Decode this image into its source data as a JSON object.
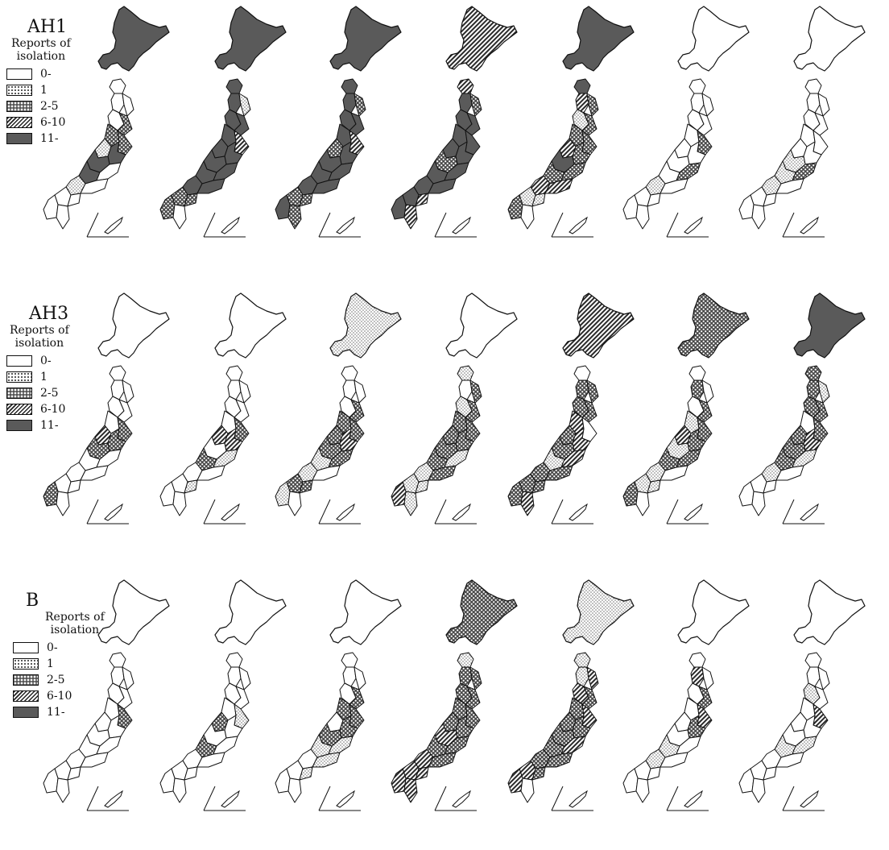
{
  "rows": [
    {
      "title": "AH1",
      "legend_subtitle_line1": "Reports of",
      "legend_subtitle_line2": "isolation",
      "legend_items": [
        "0-",
        "1",
        "2-5",
        "6-10",
        "11-"
      ],
      "maps": [
        {
          "hokkaido": 4,
          "regions": [
            0,
            0,
            0,
            0,
            2,
            2,
            2,
            1,
            4,
            4,
            4,
            0,
            1,
            0,
            0,
            0,
            0,
            0
          ]
        },
        {
          "hokkaido": 4,
          "regions": [
            4,
            4,
            1,
            4,
            4,
            4,
            3,
            4,
            4,
            4,
            4,
            4,
            4,
            4,
            2,
            2,
            2,
            0
          ]
        },
        {
          "hokkaido": 4,
          "regions": [
            4,
            4,
            2,
            4,
            4,
            4,
            3,
            2,
            4,
            4,
            4,
            4,
            4,
            4,
            2,
            2,
            4,
            2
          ]
        },
        {
          "hokkaido": 3,
          "regions": [
            3,
            4,
            2,
            4,
            4,
            4,
            4,
            4,
            4,
            2,
            4,
            4,
            4,
            4,
            4,
            3,
            4,
            3
          ]
        },
        {
          "hokkaido": 4,
          "regions": [
            4,
            3,
            2,
            1,
            2,
            2,
            2,
            3,
            2,
            4,
            2,
            2,
            3,
            3,
            1,
            1,
            2,
            0
          ]
        },
        {
          "hokkaido": 0,
          "regions": [
            0,
            0,
            0,
            0,
            0,
            0,
            2,
            0,
            0,
            0,
            0,
            2,
            1,
            0,
            0,
            0,
            0,
            0
          ]
        },
        {
          "hokkaido": 0,
          "regions": [
            0,
            0,
            0,
            0,
            0,
            0,
            0,
            0,
            0,
            1,
            1,
            2,
            1,
            0,
            0,
            0,
            0,
            0
          ]
        }
      ]
    },
    {
      "title": "AH3",
      "legend_subtitle_line1": "Reports of",
      "legend_subtitle_line2": "isolation",
      "legend_items": [
        "0-",
        "1",
        "2-5",
        "6-10",
        "11-"
      ],
      "maps": [
        {
          "hokkaido": 0,
          "regions": [
            0,
            0,
            0,
            0,
            0,
            0,
            2,
            3,
            2,
            2,
            0,
            0,
            0,
            0,
            0,
            0,
            2,
            0
          ]
        },
        {
          "hokkaido": 0,
          "regions": [
            0,
            0,
            0,
            0,
            0,
            0,
            2,
            3,
            3,
            0,
            2,
            1,
            0,
            0,
            0,
            1,
            0,
            0
          ]
        },
        {
          "hokkaido": 1,
          "regions": [
            0,
            0,
            0,
            0,
            2,
            2,
            2,
            2,
            3,
            2,
            1,
            2,
            1,
            0,
            2,
            2,
            1,
            0
          ]
        },
        {
          "hokkaido": 0,
          "regions": [
            1,
            0,
            2,
            1,
            2,
            2,
            2,
            2,
            2,
            2,
            2,
            1,
            1,
            2,
            1,
            1,
            3,
            1
          ]
        },
        {
          "hokkaido": 3,
          "regions": [
            0,
            2,
            2,
            2,
            2,
            3,
            0,
            2,
            3,
            2,
            1,
            3,
            2,
            2,
            2,
            2,
            2,
            3
          ]
        },
        {
          "hokkaido": 2,
          "regions": [
            0,
            2,
            0,
            0,
            2,
            1,
            2,
            3,
            2,
            1,
            2,
            2,
            1,
            0,
            1,
            1,
            2,
            0
          ]
        },
        {
          "hokkaido": 4,
          "regions": [
            2,
            2,
            1,
            2,
            2,
            0,
            2,
            2,
            3,
            2,
            2,
            1,
            1,
            0,
            0,
            0,
            0,
            0
          ]
        }
      ]
    },
    {
      "title": "B",
      "legend_subtitle_line1": "Reports of",
      "legend_subtitle_line2": "isolation",
      "legend_items": [
        "0-",
        "1",
        "2-5",
        "6-10",
        "11-"
      ],
      "maps": [
        {
          "hokkaido": 0,
          "regions": [
            0,
            0,
            0,
            0,
            0,
            0,
            2,
            0,
            0,
            0,
            0,
            0,
            0,
            0,
            0,
            0,
            0,
            0
          ]
        },
        {
          "hokkaido": 0,
          "regions": [
            0,
            0,
            0,
            0,
            0,
            0,
            1,
            2,
            0,
            0,
            2,
            0,
            0,
            0,
            0,
            0,
            0,
            0
          ]
        },
        {
          "hokkaido": 0,
          "regions": [
            0,
            0,
            0,
            0,
            2,
            2,
            2,
            0,
            2,
            2,
            1,
            1,
            0,
            1,
            0,
            1,
            0,
            0
          ]
        },
        {
          "hokkaido": 2,
          "regions": [
            1,
            2,
            2,
            2,
            2,
            2,
            2,
            2,
            2,
            3,
            2,
            2,
            3,
            2,
            3,
            3,
            3,
            3
          ]
        },
        {
          "hokkaido": 1,
          "regions": [
            1,
            1,
            3,
            3,
            2,
            2,
            3,
            2,
            2,
            2,
            2,
            3,
            2,
            2,
            3,
            2,
            3,
            0
          ]
        },
        {
          "hokkaido": 0,
          "regions": [
            0,
            3,
            0,
            0,
            2,
            0,
            3,
            0,
            2,
            0,
            1,
            0,
            1,
            0,
            0,
            0,
            0,
            0
          ]
        },
        {
          "hokkaido": 0,
          "regions": [
            0,
            0,
            0,
            1,
            0,
            0,
            3,
            0,
            0,
            0,
            1,
            1,
            0,
            0,
            0,
            0,
            0,
            0
          ]
        }
      ]
    }
  ],
  "colors": {
    "ink": "#111111",
    "white": "#ffffff",
    "dark_fill": "#5a5a5a",
    "mid_fill": "#555555"
  }
}
